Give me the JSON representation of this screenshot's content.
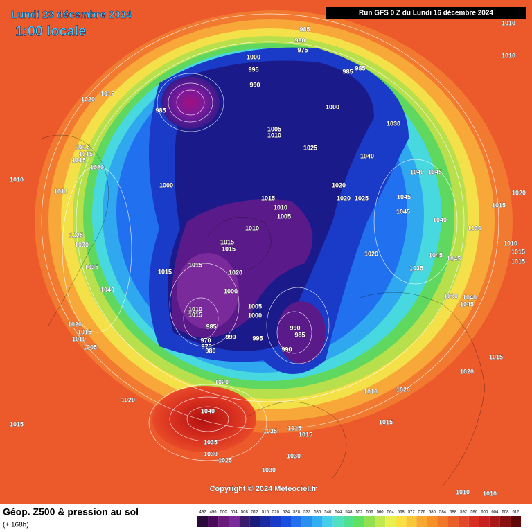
{
  "header": {
    "date": "Lundi 23 décembre 2024",
    "time": "1:00 locale",
    "run": "Run GFS 0 Z du Lundi 16 décembre 2024"
  },
  "map": {
    "isobar_labels": [
      "985",
      "980",
      "975",
      "1000",
      "995",
      "985",
      "985",
      "990",
      "1000",
      "1030",
      "1005",
      "1010",
      "1025",
      "1040",
      "1040",
      "1045",
      "1020",
      "1020",
      "1025",
      "1045",
      "1045",
      "1040",
      "1030",
      "1015",
      "1010",
      "1005",
      "1010",
      "1015",
      "1015",
      "1015",
      "1015",
      "1020",
      "1000",
      "1005",
      "1000",
      "1010",
      "1015",
      "985",
      "990",
      "995",
      "970",
      "975",
      "980",
      "990",
      "985",
      "990",
      "1020",
      "1035",
      "1045",
      "1045",
      "1040",
      "1035",
      "1030",
      "1025",
      "1010",
      "1000",
      "1015",
      "1015",
      "1015",
      "1020",
      "1020",
      "1015",
      "1010",
      "1010",
      "1010",
      "1020",
      "1015",
      "1010",
      "1015",
      "1015",
      "1040",
      "1045",
      "1030",
      "1015",
      "1020",
      "1010",
      "1020",
      "1015",
      "1020",
      "1020",
      "1015",
      "1040",
      "1035",
      "1030",
      "1025",
      "1030",
      "1030",
      "1035",
      "1015",
      "1015",
      "1010",
      "1010",
      "1020",
      "1015",
      "1010",
      "1005",
      "985"
    ],
    "copyright": "Copyright © 2024 Meteociel.fr"
  },
  "footer": {
    "title": "Géop. Z500 & pression au sol",
    "subtitle": "(+ 168h)"
  },
  "colorbar": {
    "labels": [
      "492",
      "496",
      "500",
      "504",
      "508",
      "512",
      "516",
      "520",
      "524",
      "528",
      "532",
      "536",
      "540",
      "544",
      "548",
      "552",
      "556",
      "560",
      "564",
      "568",
      "572",
      "576",
      "580",
      "584",
      "588",
      "592",
      "596",
      "600",
      "604",
      "608",
      "612"
    ],
    "colors": [
      "#2a0a3a",
      "#4a0a5a",
      "#6a1a7a",
      "#7a2a9a",
      "#3a1a6a",
      "#1a1a7a",
      "#1a2aa0",
      "#1a3ac8",
      "#1a50e0",
      "#2070f0",
      "#2a90f0",
      "#30b0f0",
      "#40d0e8",
      "#50e0c0",
      "#50e090",
      "#60e060",
      "#90e050",
      "#c0e850",
      "#e8f050",
      "#f8e040",
      "#f8c838",
      "#f8a830",
      "#f89028",
      "#f07828",
      "#e86028",
      "#e04828",
      "#d83020",
      "#c82020",
      "#a81818",
      "#881010",
      "#600808"
    ]
  }
}
